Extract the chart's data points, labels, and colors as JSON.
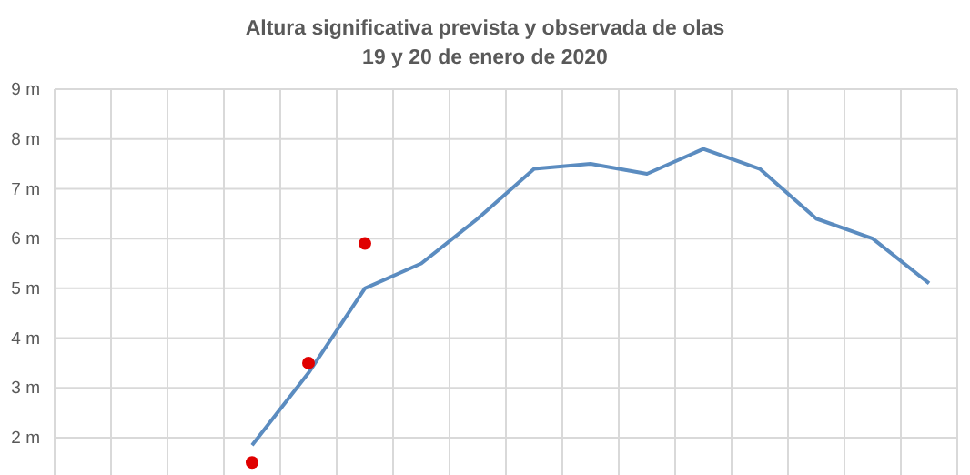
{
  "chart_data": {
    "type": "line",
    "title": "Altura significativa prevista y observada de olas",
    "subtitle": "19 y 20 de enero de 2020",
    "categories": [
      null,
      null,
      null,
      null,
      null,
      null,
      null,
      null,
      null,
      null,
      null,
      null,
      null,
      null,
      null,
      null
    ],
    "series": [
      {
        "color": "#5b8cc0",
        "values": [
          null,
          null,
          null,
          1.85,
          3.3,
          5.0,
          5.5,
          6.4,
          7.4,
          7.5,
          7.3,
          7.8,
          7.4,
          6.4,
          6.0,
          5.1
        ]
      },
      {
        "type": "scatter",
        "color": "#e00000",
        "values": [
          null,
          null,
          null,
          1.5,
          3.5,
          5.9,
          null,
          null,
          null,
          null,
          null,
          null,
          null,
          null,
          null,
          null
        ]
      }
    ],
    "ylim": [
      1.25,
      9
    ],
    "yticks": [
      {
        "value": 2,
        "label": "2 m"
      },
      {
        "value": 3,
        "label": "3 m"
      },
      {
        "value": 4,
        "label": "4 m"
      },
      {
        "value": 5,
        "label": "5 m"
      },
      {
        "value": 6,
        "label": "6 m"
      },
      {
        "value": 7,
        "label": "7 m"
      },
      {
        "value": 8,
        "label": "8 m"
      },
      {
        "value": 9,
        "label": "9 m"
      }
    ],
    "grid": true,
    "tick_labels": "y"
  }
}
